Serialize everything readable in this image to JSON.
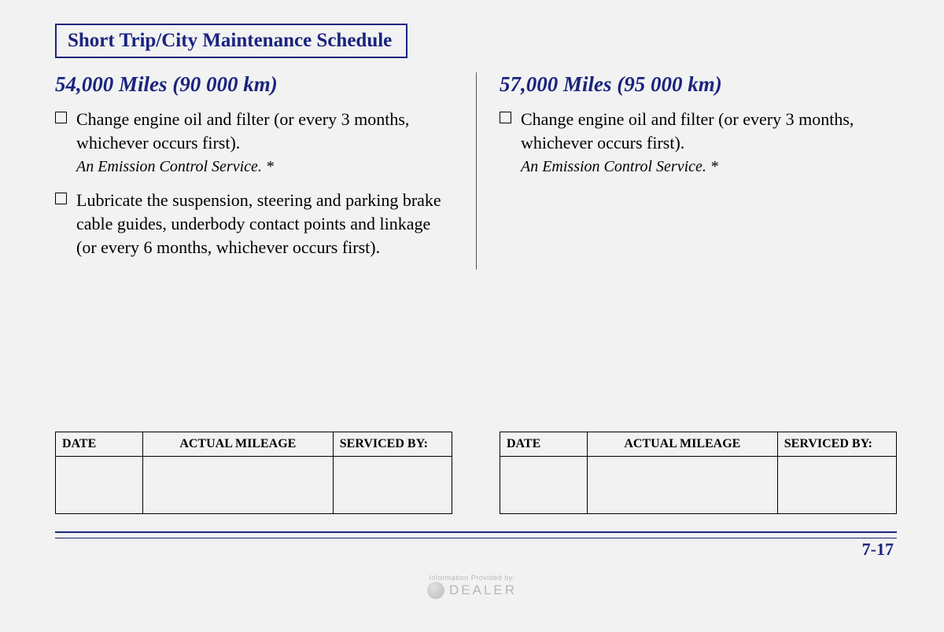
{
  "title": "Short Trip/City Maintenance Schedule",
  "colors": {
    "accent": "#1a237e",
    "text": "#000000",
    "background": "#f2f2f2"
  },
  "left": {
    "heading": "54,000 Miles (90 000 km)",
    "items": [
      {
        "text": "Change engine oil and filter (or every 3 months, whichever occurs first).",
        "note": "An Emission Control Service. *"
      },
      {
        "text": "Lubricate the suspension, steering and parking brake cable guides, underbody contact points and linkage (or every 6 months, whichever occurs first).",
        "note": ""
      }
    ],
    "table": {
      "columns": [
        "DATE",
        "ACTUAL MILEAGE",
        "SERVICED BY:"
      ],
      "rows": [
        [
          "",
          "",
          ""
        ]
      ]
    }
  },
  "right": {
    "heading": "57,000 Miles (95 000 km)",
    "items": [
      {
        "text": "Change engine oil and filter (or every 3 months, whichever occurs first).",
        "note": "An Emission Control Service. *"
      }
    ],
    "table": {
      "columns": [
        "DATE",
        "ACTUAL MILEAGE",
        "SERVICED BY:"
      ],
      "rows": [
        [
          "",
          "",
          ""
        ]
      ]
    }
  },
  "page_number": "7-17",
  "watermark": {
    "small": "Information Provided by:",
    "brand": "DEALER"
  }
}
